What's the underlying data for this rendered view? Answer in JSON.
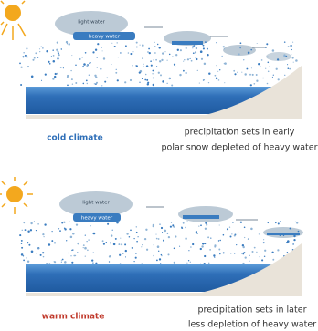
{
  "panels": [
    {
      "light_label": "light water",
      "heavy_label": "heavy water",
      "climate": "cold climate",
      "caption": [
        "precipitation sets in early",
        "polar snow depleted of heavy water"
      ]
    },
    {
      "light_label": "light water",
      "heavy_label": "heavy water",
      "climate": "warm climate",
      "caption": [
        "precipitation sets in later",
        "less depletion of heavy water"
      ]
    }
  ]
}
